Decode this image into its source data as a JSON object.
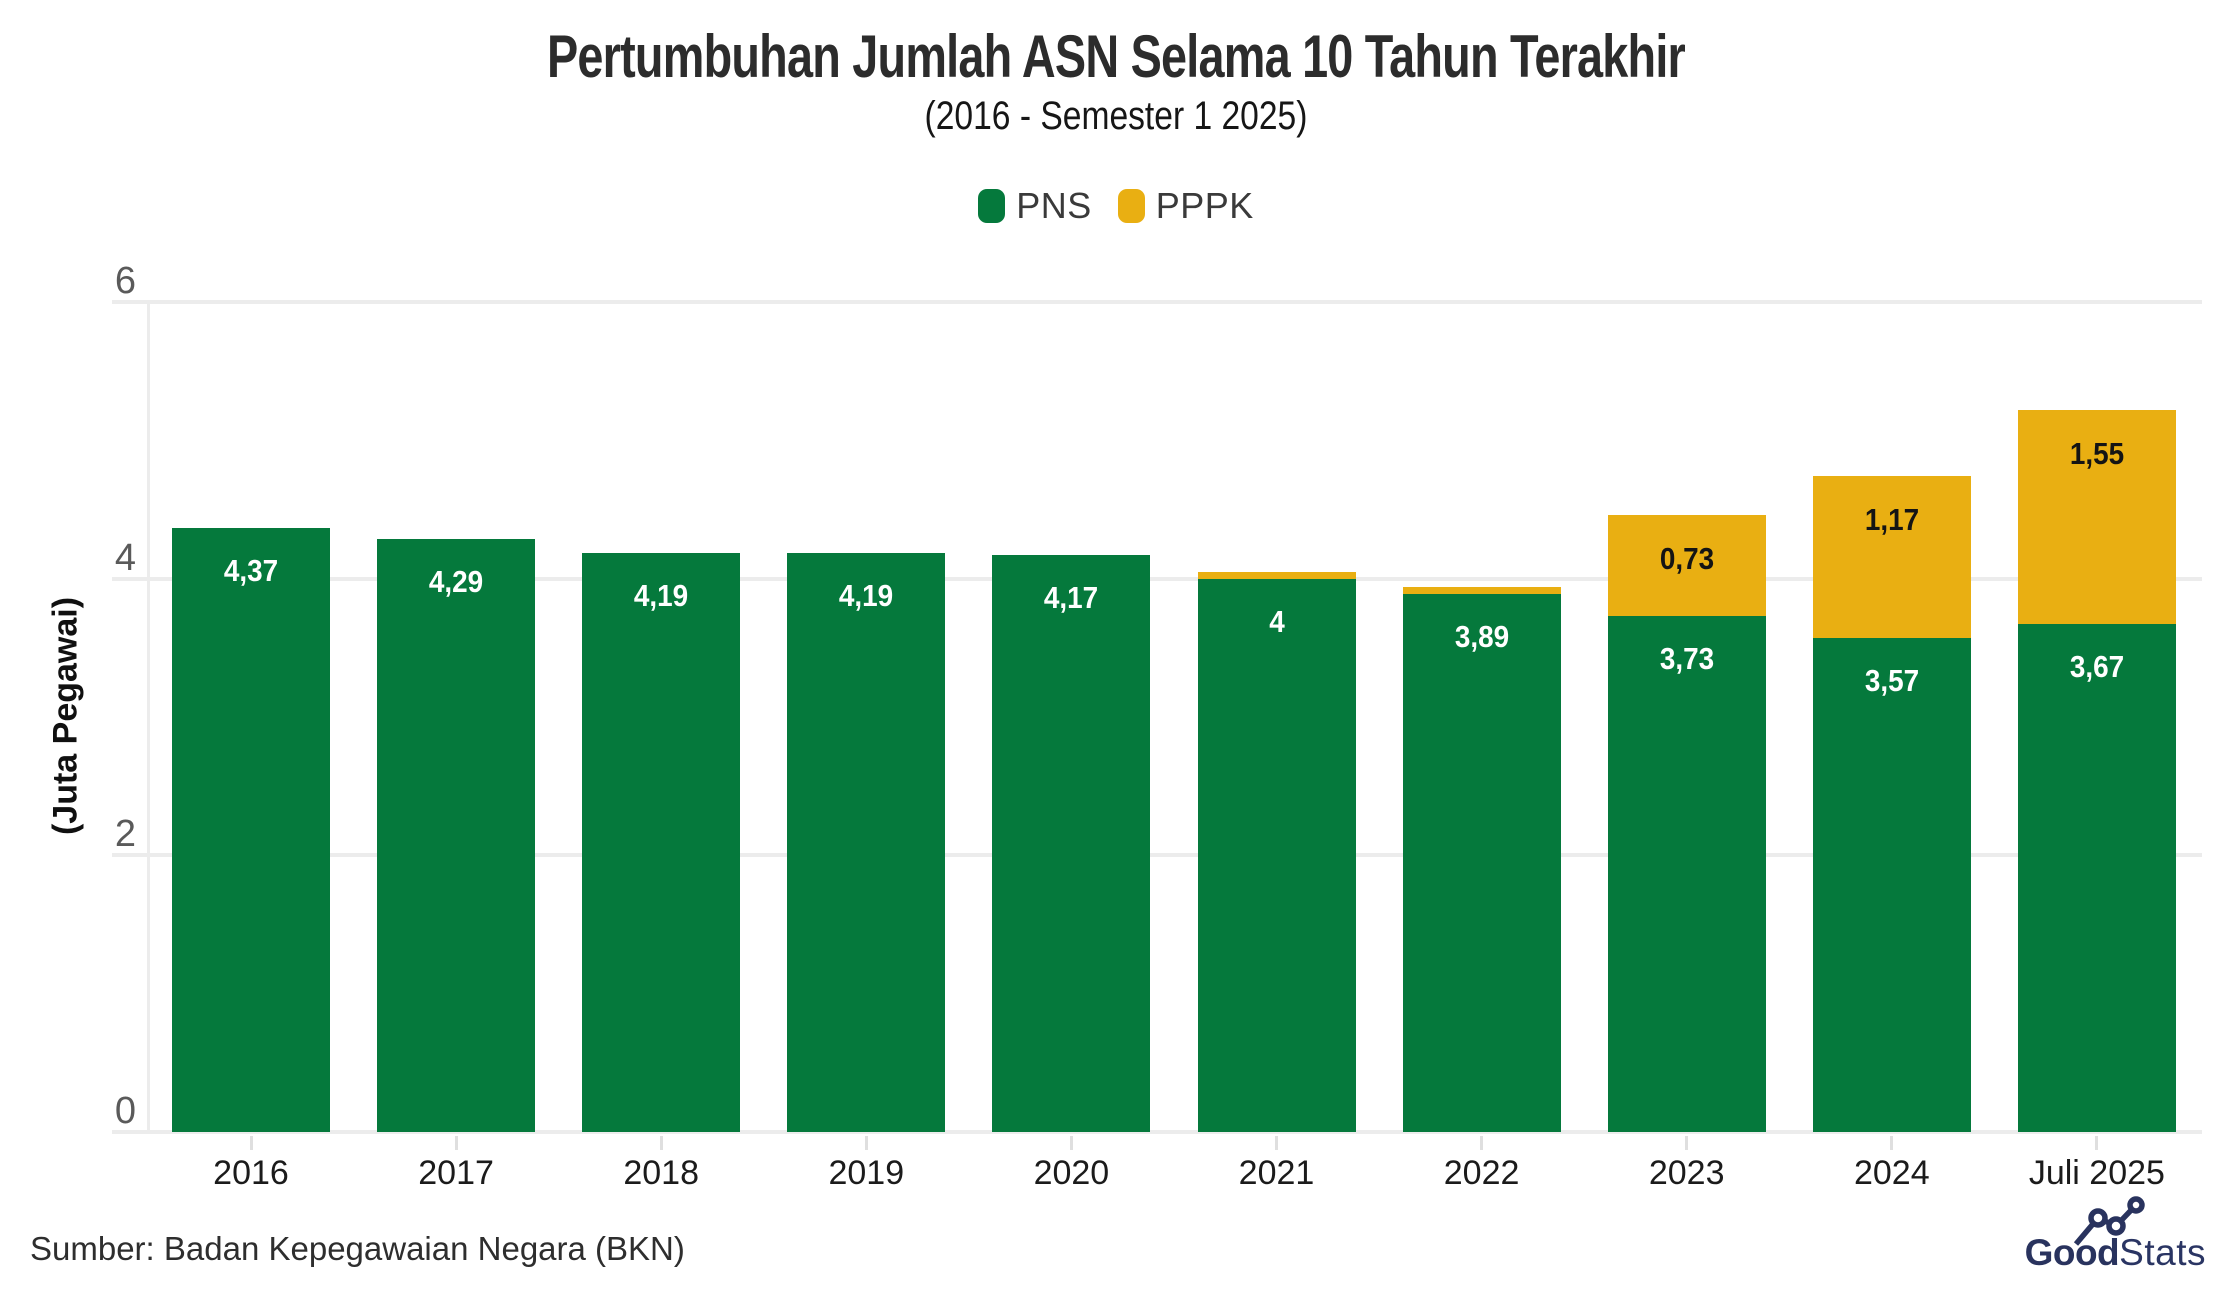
{
  "header": {
    "title": "Pertumbuhan Jumlah ASN Selama 10 Tahun Terakhir",
    "subtitle": "(2016 - Semester 1 2025)"
  },
  "legend": {
    "items": [
      {
        "label": "PNS",
        "color": "#05793C"
      },
      {
        "label": "PPPK",
        "color": "#E9AF12"
      }
    ]
  },
  "axis": {
    "y_title": "(Juta Pegawai)",
    "y_ticks": [
      "0",
      "2",
      "4",
      "6"
    ]
  },
  "chart_data": {
    "type": "bar",
    "stacked": true,
    "title": "Pertumbuhan Jumlah ASN Selama 10 Tahun Terakhir",
    "subtitle": "(2016 - Semester 1 2025)",
    "ylabel": "(Juta Pegawai)",
    "ylim": [
      0,
      6
    ],
    "yticks": [
      0,
      2,
      4,
      6
    ],
    "grid": true,
    "legend_position": "top",
    "categories": [
      "2016",
      "2017",
      "2018",
      "2019",
      "2020",
      "2021",
      "2022",
      "2023",
      "2024",
      "Juli 2025"
    ],
    "series": [
      {
        "name": "PNS",
        "color": "#05793C",
        "label_color": "#FFFFFF",
        "values": [
          4.37,
          4.29,
          4.19,
          4.19,
          4.17,
          4.0,
          3.89,
          3.73,
          3.57,
          3.67
        ],
        "labels": [
          "4,37",
          "4,29",
          "4,19",
          "4,19",
          "4,17",
          "4",
          "3,89",
          "3,73",
          "3,57",
          "3,67"
        ]
      },
      {
        "name": "PPPK",
        "color": "#E9AF12",
        "label_color": "#141414",
        "values": [
          0,
          0,
          0,
          0,
          0,
          0.05,
          0.05,
          0.73,
          1.17,
          1.55
        ],
        "labels": [
          "",
          "",
          "",
          "",
          "",
          "",
          "",
          "0,73",
          "1,17",
          "1,55"
        ]
      }
    ]
  },
  "footer": {
    "source": "Sumber: Badan Kepegawaian Negara (BKN)",
    "brand": {
      "bold": "Good",
      "light": "Stats",
      "color": "#2A3563"
    }
  }
}
